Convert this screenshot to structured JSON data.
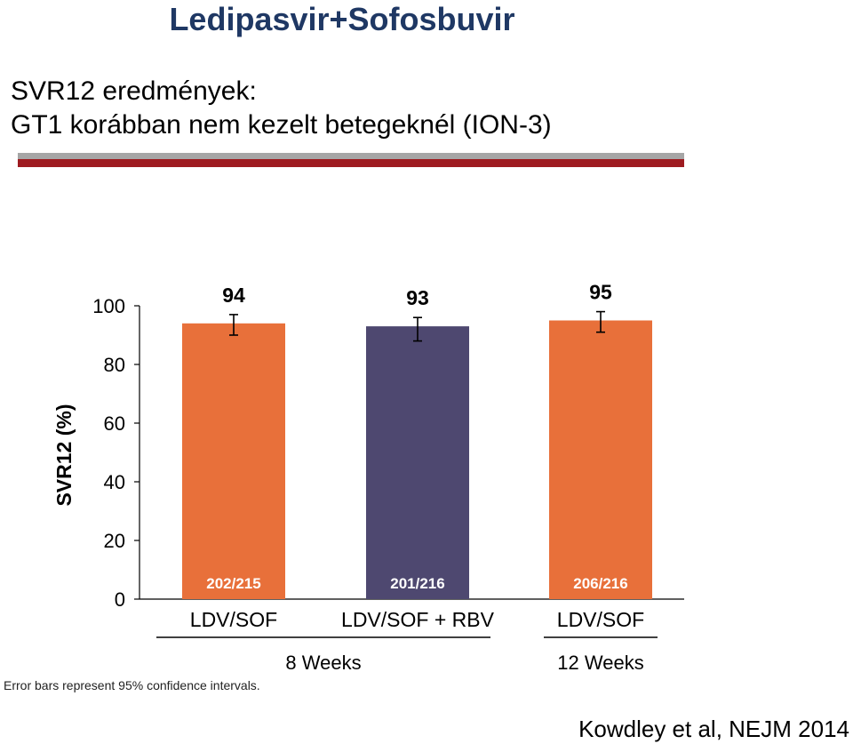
{
  "slide": {
    "title": "Ledipasvir+Sofosbuvir",
    "subtitle_line1": "SVR12 eredmények:",
    "subtitle_line2": "GT1 korábban nem kezelt betegeknél (ION-3)",
    "citation": "Kowdley et al, NEJM 2014",
    "footnote": "Error bars represent 95% confidence intervals."
  },
  "colors": {
    "orange": "#e8703a",
    "purple": "#4e4870",
    "title": "#1f3864",
    "rule_gray": "#a6a6a6",
    "rule_red": "#9e1b20"
  },
  "chart_data": {
    "type": "bar",
    "title": "",
    "ylabel": "SVR12 (%)",
    "xlabel": "",
    "ylim": [
      0,
      100
    ],
    "yticks": [
      0,
      20,
      40,
      60,
      80,
      100
    ],
    "grid": false,
    "categories": [
      "LDV/SOF",
      "LDV/SOF + RBV",
      "LDV/SOF"
    ],
    "values": [
      94,
      93,
      95
    ],
    "value_labels": [
      "94",
      "93",
      "95"
    ],
    "counts": [
      "202/215",
      "201/216",
      "206/216"
    ],
    "error_bars": [
      [
        90,
        97
      ],
      [
        88,
        96
      ],
      [
        91,
        98
      ]
    ],
    "bar_colors": [
      "#e8703a",
      "#4e4870",
      "#e8703a"
    ],
    "groups": [
      {
        "label": "8 Weeks",
        "categories": [
          0,
          1
        ]
      },
      {
        "label": "12 Weeks",
        "categories": [
          2
        ]
      }
    ]
  }
}
